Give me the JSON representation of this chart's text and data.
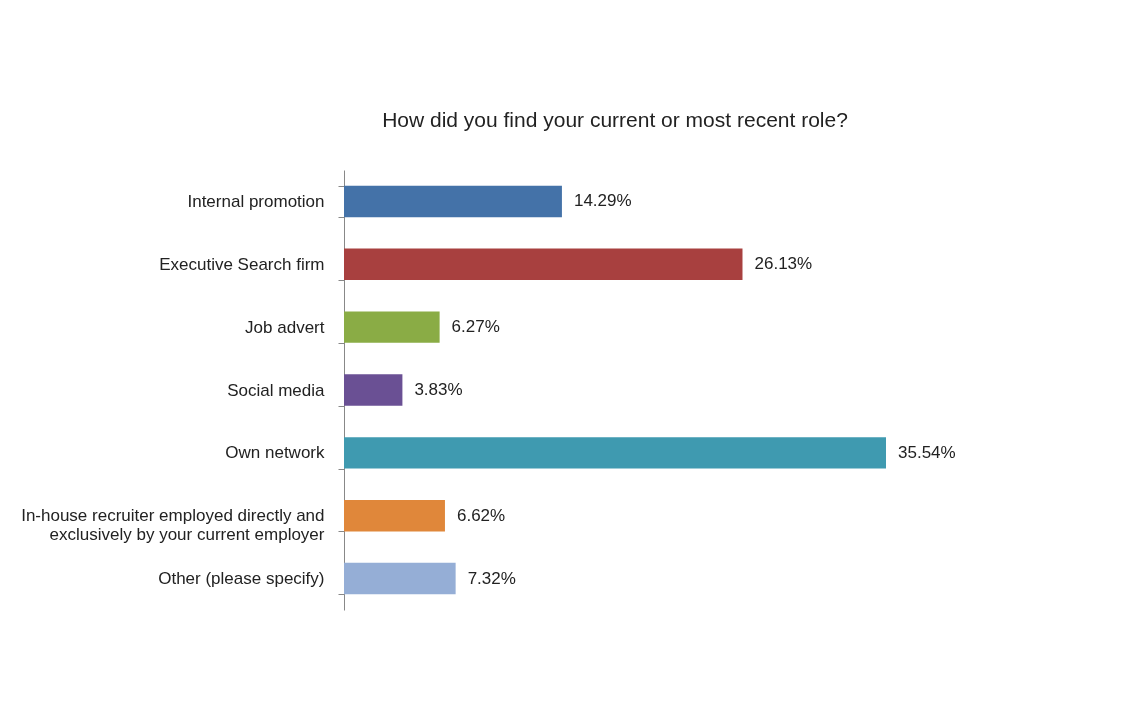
{
  "chart_data": {
    "type": "bar",
    "orientation": "horizontal",
    "title": "How did you find your current or most recent role?",
    "categories": [
      "Internal promotion",
      "Executive Search firm",
      "Job advert",
      "Social media",
      "Own network",
      "In-house recruiter employed directly and exclusively by your current employer",
      "Other (please specify)"
    ],
    "values": [
      14.29,
      26.13,
      6.27,
      3.83,
      35.54,
      6.62,
      7.32
    ],
    "colors": [
      "#4472a8",
      "#a8403f",
      "#8aac45",
      "#6a5094",
      "#3f9ab0",
      "#e0873a",
      "#95aed6"
    ],
    "value_labels": [
      "14.29%",
      "26.13%",
      "6.27%",
      "3.83%",
      "35.54%",
      "6.62%",
      "7.32%"
    ]
  }
}
